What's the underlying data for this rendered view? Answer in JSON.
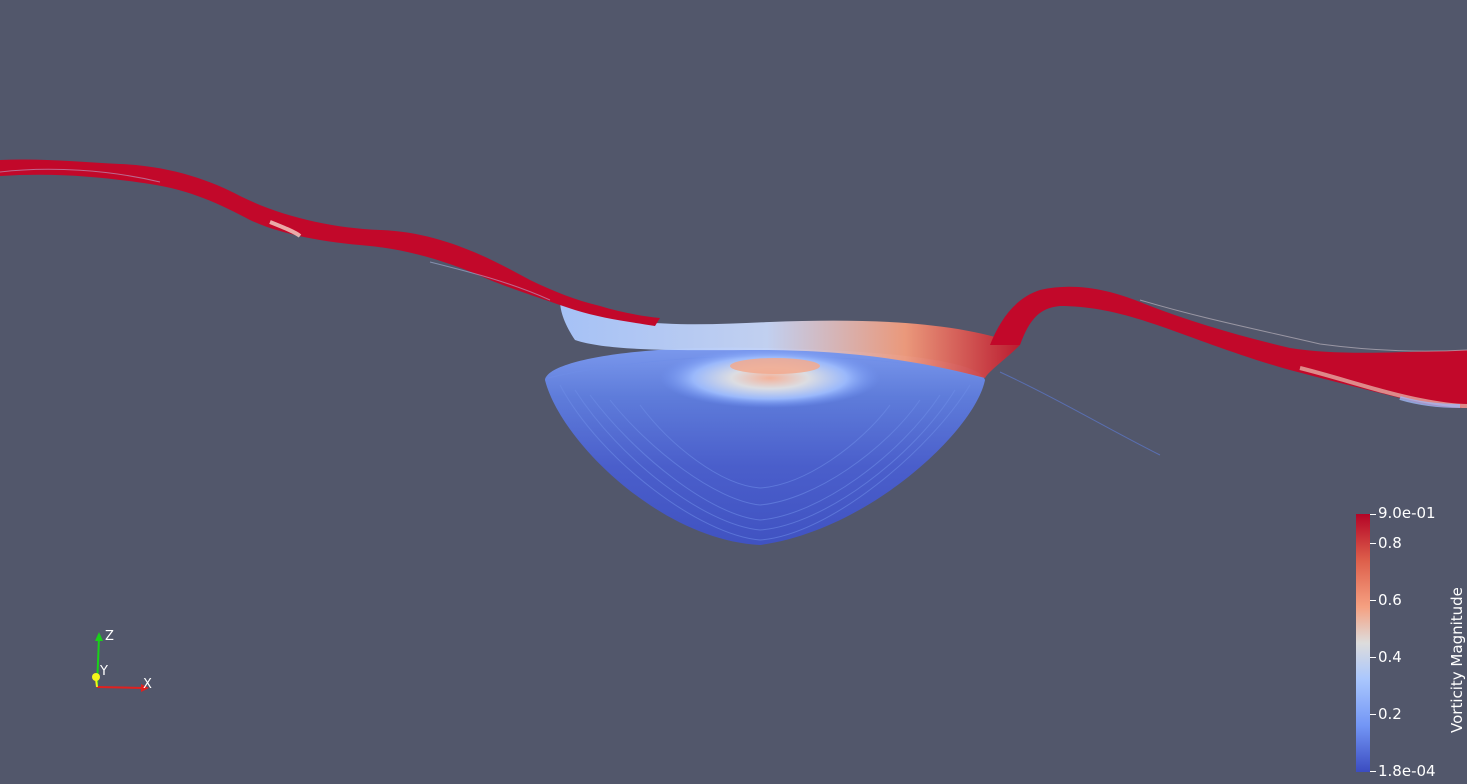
{
  "colorbar": {
    "title": "Vorticity Magnitude",
    "max_label": "9.0e-01",
    "min_label": "1.8e-04",
    "tick_labels": [
      "0.8",
      "0.6",
      "0.4",
      "0.2"
    ],
    "range": [
      0.00018,
      0.9
    ],
    "colormap": "cool-to-warm",
    "colors": {
      "high": "#b40426",
      "mid": "#dddcdc",
      "low": "#3b4cc0"
    }
  },
  "orientation_axes": {
    "x_label": "X",
    "y_label": "Y",
    "z_label": "Z",
    "colors": {
      "x": "#e0211f",
      "y": "#f5f51a",
      "z": "#1ad11a"
    }
  },
  "background_color": "#52576b",
  "scene": {
    "description_icon": "streamlines-icon"
  }
}
